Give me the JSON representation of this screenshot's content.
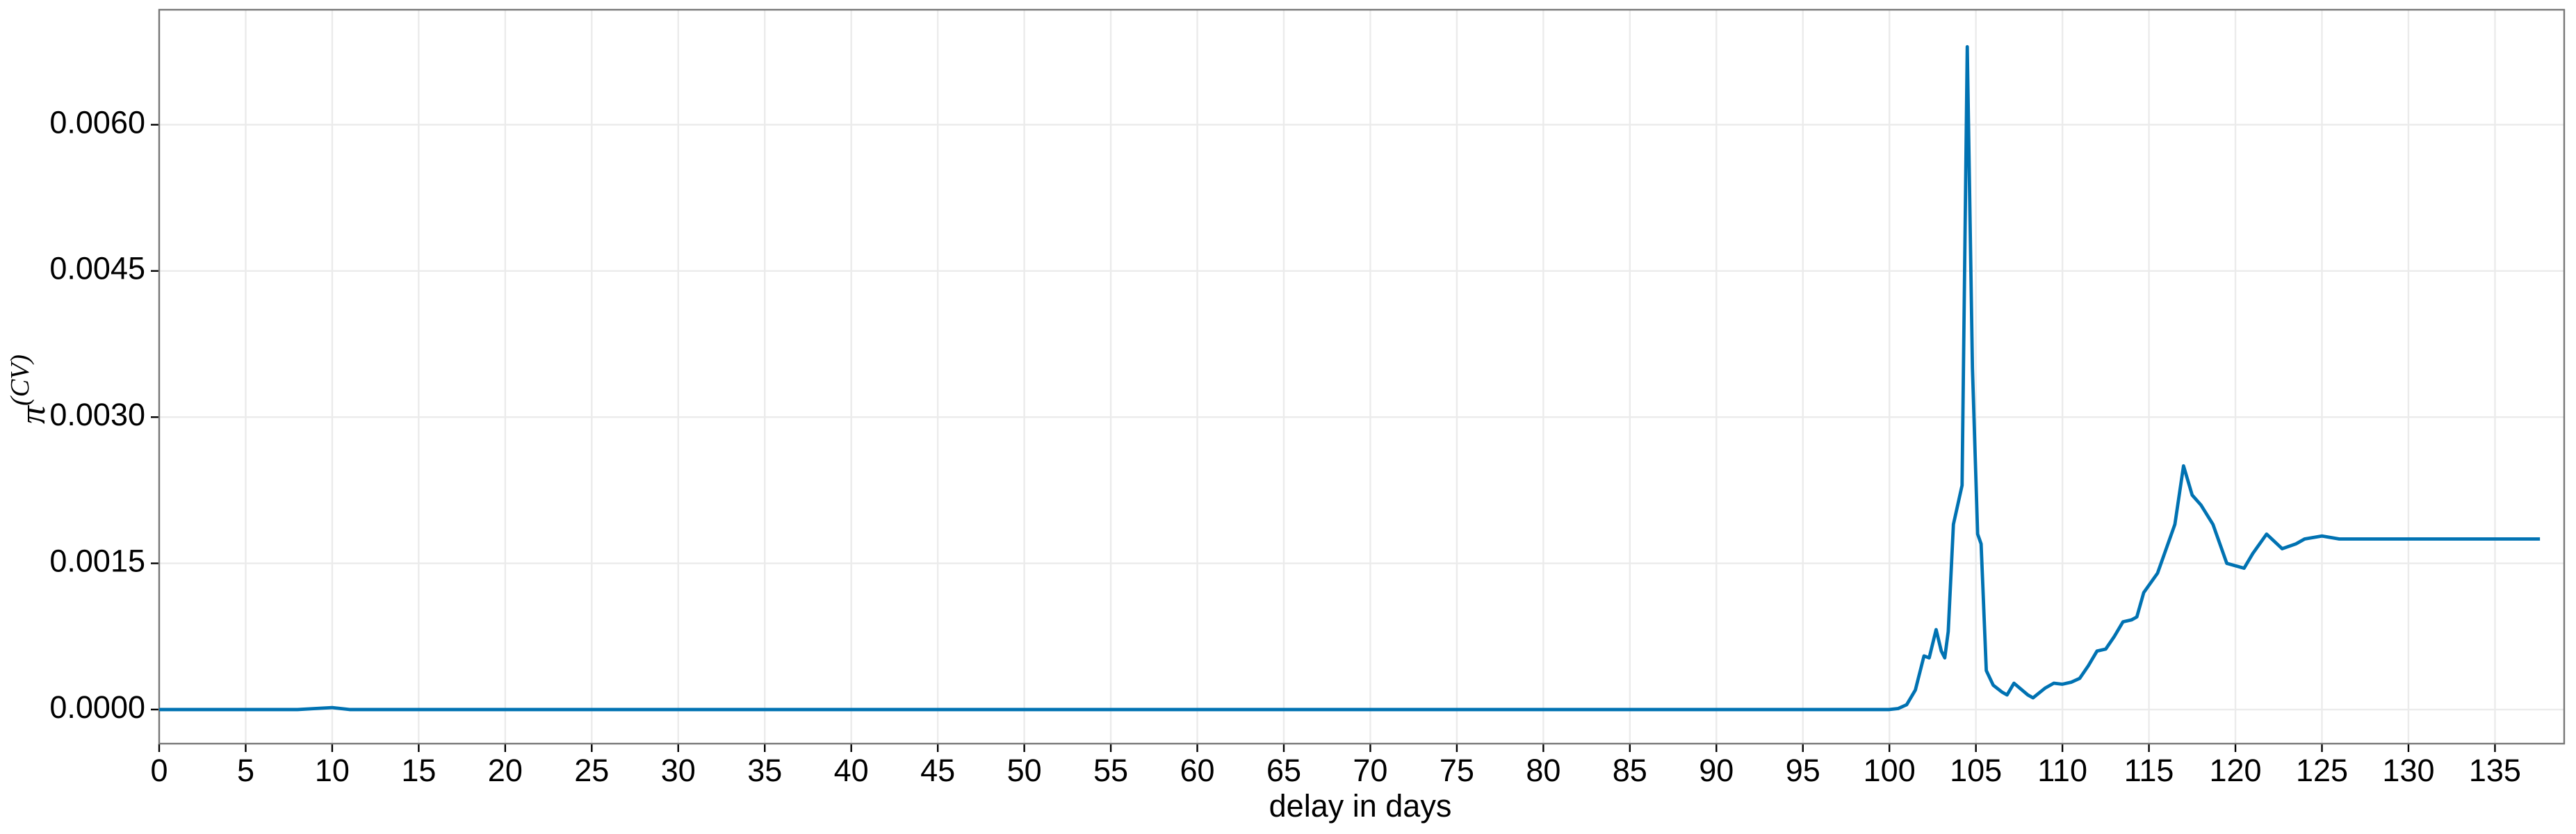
{
  "chart_data": {
    "type": "line",
    "xlabel": "delay in days",
    "ylabel": "π",
    "ylabel_superscript": "(CV)",
    "x": [
      0,
      5,
      8,
      9,
      10,
      11,
      20,
      50,
      77,
      100,
      100.5,
      101,
      101.5,
      102,
      102.3,
      102.7,
      103,
      103.2,
      103.4,
      103.7,
      104.2,
      104.5,
      104.8,
      105.1,
      105.3,
      105.6,
      106,
      106.5,
      106.8,
      107.2,
      108,
      108.3,
      109,
      109.5,
      110,
      110.5,
      111,
      111.5,
      112,
      112.5,
      113,
      113.5,
      114,
      114.3,
      114.7,
      115.5,
      116.5,
      117,
      117.5,
      118,
      118.7,
      119.5,
      120.5,
      121,
      121.8,
      122.7,
      123.5,
      124,
      125,
      126,
      137.6
    ],
    "series": [
      {
        "name": "π(CV)",
        "color": "#0072b2",
        "values": [
          0,
          0,
          0,
          1e-05,
          2e-05,
          0,
          0,
          0,
          0,
          0,
          1e-05,
          5e-05,
          0.0002,
          0.00055,
          0.00053,
          0.00082,
          0.0006,
          0.00053,
          0.0008,
          0.0019,
          0.0023,
          0.0068,
          0.0035,
          0.0018,
          0.0017,
          0.0004,
          0.00025,
          0.00018,
          0.00015,
          0.00027,
          0.00015,
          0.00012,
          0.00022,
          0.00027,
          0.00026,
          0.00028,
          0.00032,
          0.00045,
          0.0006,
          0.00062,
          0.00075,
          0.0009,
          0.00092,
          0.00095,
          0.0012,
          0.0014,
          0.0019,
          0.0025,
          0.0022,
          0.0021,
          0.0019,
          0.0015,
          0.00145,
          0.0016,
          0.0018,
          0.00165,
          0.0017,
          0.00175,
          0.00178,
          0.00175,
          0.00175
        ]
      }
    ],
    "xlim": [
      0,
      139
    ],
    "ylim": [
      -0.00035,
      0.00718
    ],
    "xticks": [
      0,
      5,
      10,
      15,
      20,
      25,
      30,
      35,
      40,
      45,
      50,
      55,
      60,
      65,
      70,
      75,
      80,
      85,
      90,
      95,
      100,
      105,
      110,
      115,
      120,
      125,
      130,
      135
    ],
    "yticks": [
      {
        "value": 0,
        "label": "0.0000"
      },
      0.0015,
      {
        "value": 0.003,
        "label": "0.0030"
      },
      0.0045,
      {
        "value": 0.006,
        "label": "0.0060"
      }
    ],
    "grid": true
  }
}
